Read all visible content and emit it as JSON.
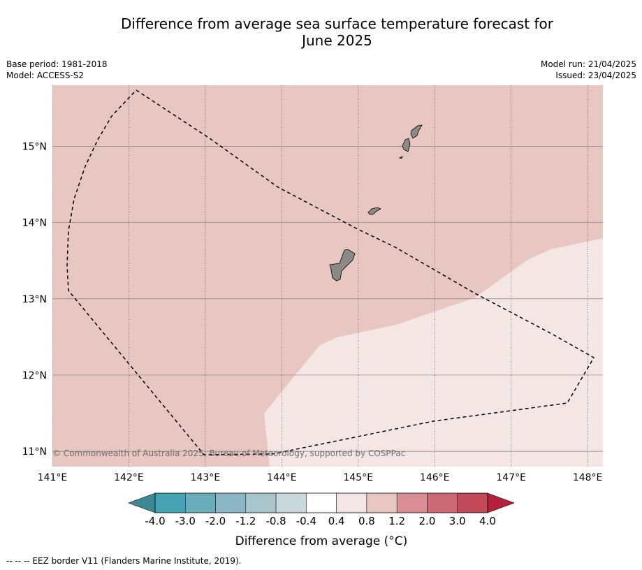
{
  "header": {
    "title_line1": "Difference from average sea surface temperature forecast for",
    "title_line2": "June 2025",
    "base_period": "Base period: 1981-2018",
    "model": "Model: ACCESS-S2",
    "model_run": "Model run: 21/04/2025",
    "issued": "Issued: 23/04/2025"
  },
  "map": {
    "lon_range": [
      141,
      148.2
    ],
    "lat_range": [
      10.8,
      15.8
    ],
    "lon_ticks": [
      141,
      142,
      143,
      144,
      145,
      146,
      147,
      148
    ],
    "lon_tick_labels": [
      "141°E",
      "142°E",
      "143°E",
      "144°E",
      "145°E",
      "146°E",
      "147°E",
      "148°E"
    ],
    "lat_ticks": [
      11,
      12,
      13,
      14,
      15
    ],
    "lat_tick_labels": [
      "11°N",
      "12°N",
      "13°N",
      "14°N",
      "15°N"
    ],
    "regions": [
      {
        "category": "0.8 to 1.2",
        "color": "#e8c6c2"
      },
      {
        "category": "0.4 to 0.8",
        "color": "#f4e6e4"
      }
    ],
    "land_color": "#8c8a87",
    "copyright": "© Commonwealth of Australia 2025, Bureau of Meteorology, supported by COSPPac"
  },
  "colorbar": {
    "title": "Difference from average (°C)",
    "tick_labels": [
      "-4.0",
      "-3.0",
      "-2.0",
      "-1.2",
      "-0.8",
      "-0.4",
      "0.4",
      "0.8",
      "1.2",
      "2.0",
      "3.0",
      "4.0"
    ],
    "colors": [
      "#46a3b3",
      "#6aadbb",
      "#8ab7c3",
      "#a8c6ca",
      "#c9d9dc",
      "#ffffff",
      "#f4e6e4",
      "#e8c6c2",
      "#d88e94",
      "#cc6a74",
      "#c24a58"
    ],
    "extend_low_color": "#3f8794",
    "extend_high_color": "#b51f3c"
  },
  "footnote": "-- -- -- EEZ border V11 (Flanders Marine Institute, 2019)."
}
